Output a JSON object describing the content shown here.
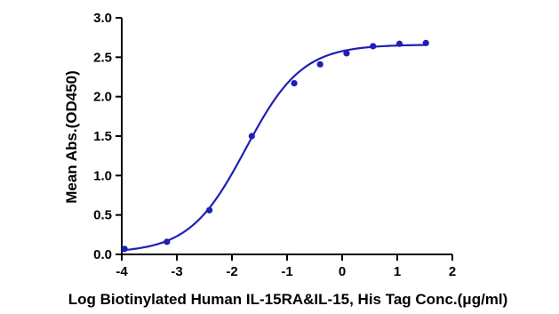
{
  "chart_data": {
    "type": "scatter",
    "xlabel": "Log Biotinylated Human IL-15RA&IL-15, His Tag Conc.(μg/ml)",
    "ylabel": "Mean Abs.(OD450)",
    "xlim": [
      -4,
      2
    ],
    "ylim": [
      0,
      3
    ],
    "x_ticks": [
      -4,
      -3,
      -2,
      -1,
      0,
      1,
      2
    ],
    "y_ticks": [
      0.0,
      0.5,
      1.0,
      1.5,
      2.0,
      2.5,
      3.0
    ],
    "x_tick_labels": [
      "-4",
      "-3",
      "-2",
      "-1",
      "0",
      "1",
      "2"
    ],
    "y_tick_labels": [
      "0.0",
      "0.5",
      "1.0",
      "1.5",
      "2.0",
      "2.5",
      "3.0"
    ],
    "grid": false,
    "colors": {
      "series": "#1f1fb4",
      "axis": "#000000"
    },
    "series": [
      {
        "x": [
          -3.95,
          -3.18,
          -2.41,
          -1.64,
          -0.87,
          -0.4,
          0.08,
          0.56,
          1.04,
          1.52
        ],
        "y": [
          0.07,
          0.16,
          0.56,
          1.5,
          2.17,
          2.41,
          2.55,
          2.64,
          2.67,
          2.68
        ],
        "fit": {
          "model": "4PL",
          "bottom": 0.02,
          "top": 2.66,
          "logEC50": -1.75,
          "hill": 0.85
        }
      }
    ]
  }
}
